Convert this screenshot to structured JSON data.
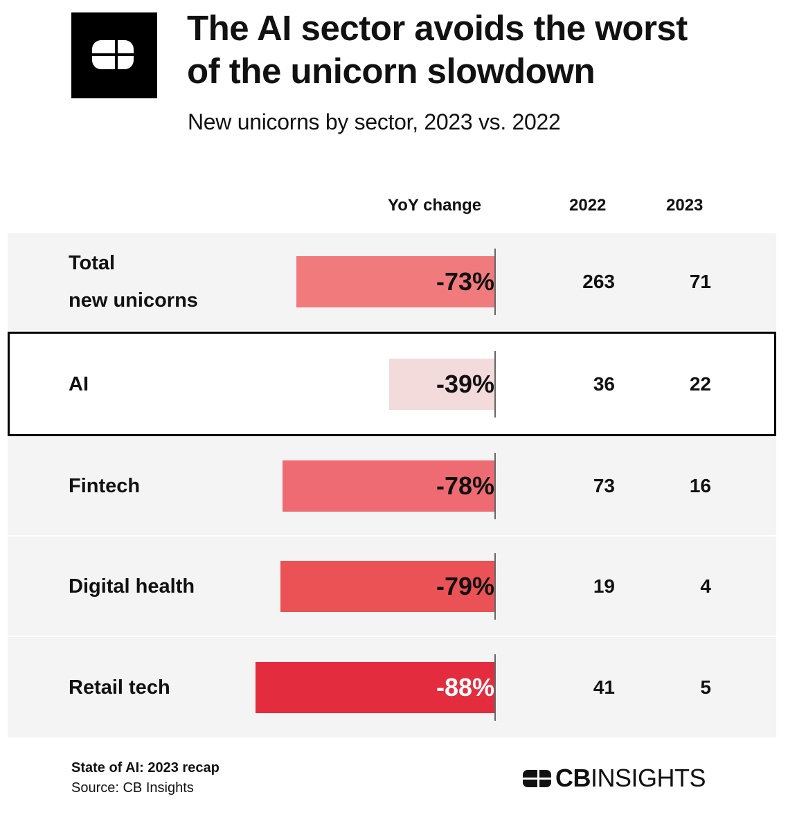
{
  "header": {
    "title_line1": "The AI sector avoids the worst",
    "title_line2": "of the unicorn slowdown",
    "subtitle": "New unicorns by sector, 2023 vs. 2022"
  },
  "columns": {
    "change": "YoY change",
    "y2022": "2022",
    "y2023": "2023"
  },
  "chart_data": {
    "type": "table",
    "title": "The AI sector avoids the worst of the unicorn slowdown",
    "subtitle": "New unicorns by sector, 2023 vs. 2022",
    "highlighted": "AI",
    "columns": [
      "YoY change",
      "2022",
      "2023"
    ],
    "rows": [
      {
        "label_lines": [
          "Total",
          "new unicorns"
        ],
        "change": -73,
        "change_label": "-73%",
        "v2022": "263",
        "v2023": "71",
        "color": "#f07a7c"
      },
      {
        "label_lines": [
          "AI"
        ],
        "change": -39,
        "change_label": "-39%",
        "v2022": "36",
        "v2023": "22",
        "color": "#f3dadb"
      },
      {
        "label_lines": [
          "Fintech"
        ],
        "change": -78,
        "change_label": "-78%",
        "v2022": "73",
        "v2023": "16",
        "color": "#ee6b73"
      },
      {
        "label_lines": [
          "Digital health"
        ],
        "change": -79,
        "change_label": "-79%",
        "v2022": "19",
        "v2023": "4",
        "color": "#ea5256"
      },
      {
        "label_lines": [
          "Retail tech"
        ],
        "change": -88,
        "change_label": "-88%",
        "v2022": "41",
        "v2023": "5",
        "color": "#e32d3f"
      }
    ]
  },
  "footer": {
    "report": "State of AI: 2023 recap",
    "source": "Source: CB Insights"
  },
  "brand": {
    "cb": "CB",
    "insights": "INSIGHTS"
  },
  "colors": {
    "logo_bg": "#000000",
    "row_bg": "#f4f4f4",
    "highlight_border": "#000000"
  },
  "icons": {
    "logo": "cb-logo-icon"
  }
}
